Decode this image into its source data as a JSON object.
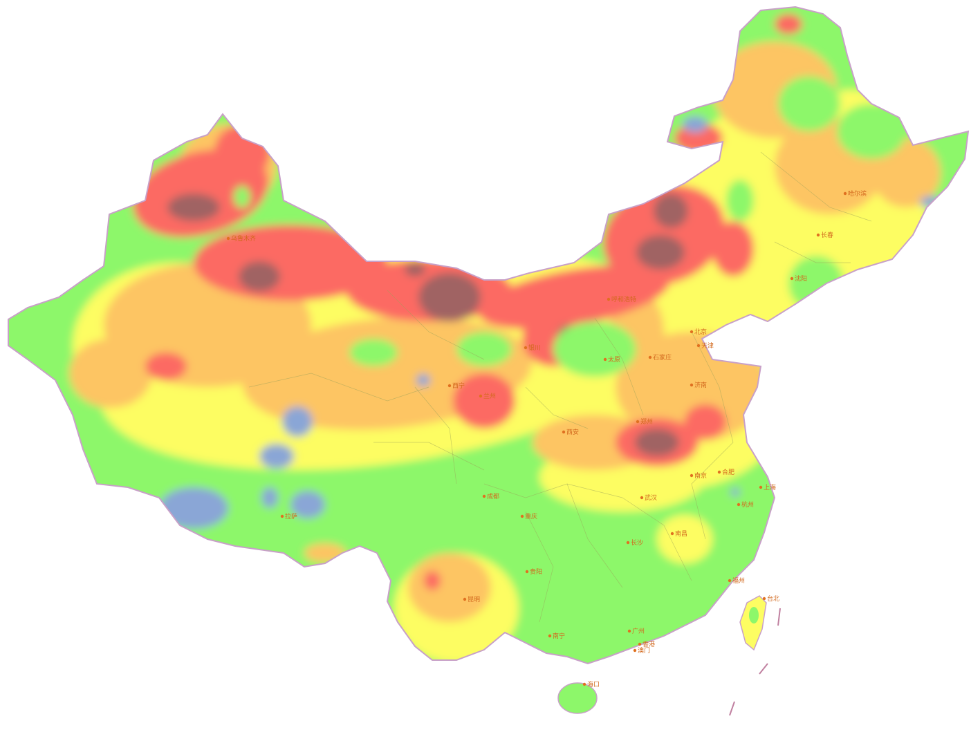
{
  "colors": {
    "blue": "#8aa6d6",
    "green": "#8df76a",
    "yellow": "#fdfd62",
    "orange": "#fdc564",
    "red": "#fc6a64",
    "maroon": "#a06464",
    "outline": "#c8a0c8",
    "label": "#d2691e"
  },
  "cities": [
    {
      "id": "urumqi",
      "name": "乌鲁木齐"
    },
    {
      "id": "harbin",
      "name": "哈尔滨"
    },
    {
      "id": "changchun",
      "name": "长春"
    },
    {
      "id": "shenyang",
      "name": "沈阳"
    },
    {
      "id": "hohhot",
      "name": "呼和浩特"
    },
    {
      "id": "beijing",
      "name": "北京"
    },
    {
      "id": "tianjin",
      "name": "天津"
    },
    {
      "id": "shijiazhuang",
      "name": "石家庄"
    },
    {
      "id": "taiyuan",
      "name": "太原"
    },
    {
      "id": "jinan",
      "name": "济南"
    },
    {
      "id": "yinchuan",
      "name": "银川"
    },
    {
      "id": "xining",
      "name": "西宁"
    },
    {
      "id": "lanzhou",
      "name": "兰州"
    },
    {
      "id": "xian",
      "name": "西安"
    },
    {
      "id": "zhengzhou",
      "name": "郑州"
    },
    {
      "id": "hefei",
      "name": "合肥"
    },
    {
      "id": "nanjing",
      "name": "南京"
    },
    {
      "id": "shanghai",
      "name": "上海"
    },
    {
      "id": "hangzhou",
      "name": "杭州"
    },
    {
      "id": "wuhan",
      "name": "武汉"
    },
    {
      "id": "chengdu",
      "name": "成都"
    },
    {
      "id": "chongqing",
      "name": "重庆"
    },
    {
      "id": "lhasa",
      "name": "拉萨"
    },
    {
      "id": "guiyang",
      "name": "贵阳"
    },
    {
      "id": "kunming",
      "name": "昆明"
    },
    {
      "id": "changsha",
      "name": "长沙"
    },
    {
      "id": "nanchang",
      "name": "南昌"
    },
    {
      "id": "fuzhou",
      "name": "福州"
    },
    {
      "id": "taipei",
      "name": "台北"
    },
    {
      "id": "guangzhou",
      "name": "广州"
    },
    {
      "id": "nanning",
      "name": "南宁"
    },
    {
      "id": "hongkong",
      "name": "香港"
    },
    {
      "id": "macau",
      "name": "澳门"
    },
    {
      "id": "haikou",
      "name": "海口"
    }
  ]
}
